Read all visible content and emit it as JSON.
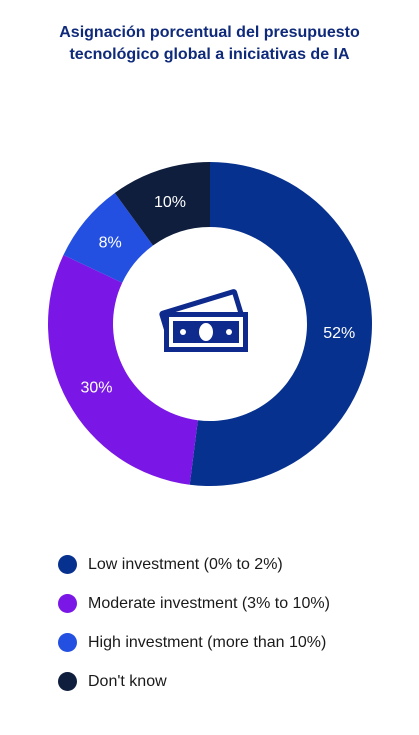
{
  "title_lines": [
    "Asignación porcentual del presupuesto",
    "tecnológico global a iniciativas de IA"
  ],
  "icon": "money-bills-icon",
  "colors": {
    "title": "#0f2a7a",
    "icon": "#0d2a8c"
  },
  "chart_data": {
    "type": "pie",
    "donut": true,
    "title": "Asignación porcentual del presupuesto tecnológico global a iniciativas de IA",
    "legend_position": "bottom",
    "series": [
      {
        "name": "Low investment (0% to 2%)",
        "value": 52,
        "label": "52%",
        "color": "#07318f"
      },
      {
        "name": "Moderate investment (3% to 10%)",
        "value": 30,
        "label": "30%",
        "color": "#7a17e6"
      },
      {
        "name": "High investment (more than 10%)",
        "value": 8,
        "label": "8%",
        "color": "#2350e0"
      },
      {
        "name": "Don't know",
        "value": 10,
        "label": "10%",
        "color": "#0f1e3d"
      }
    ]
  }
}
